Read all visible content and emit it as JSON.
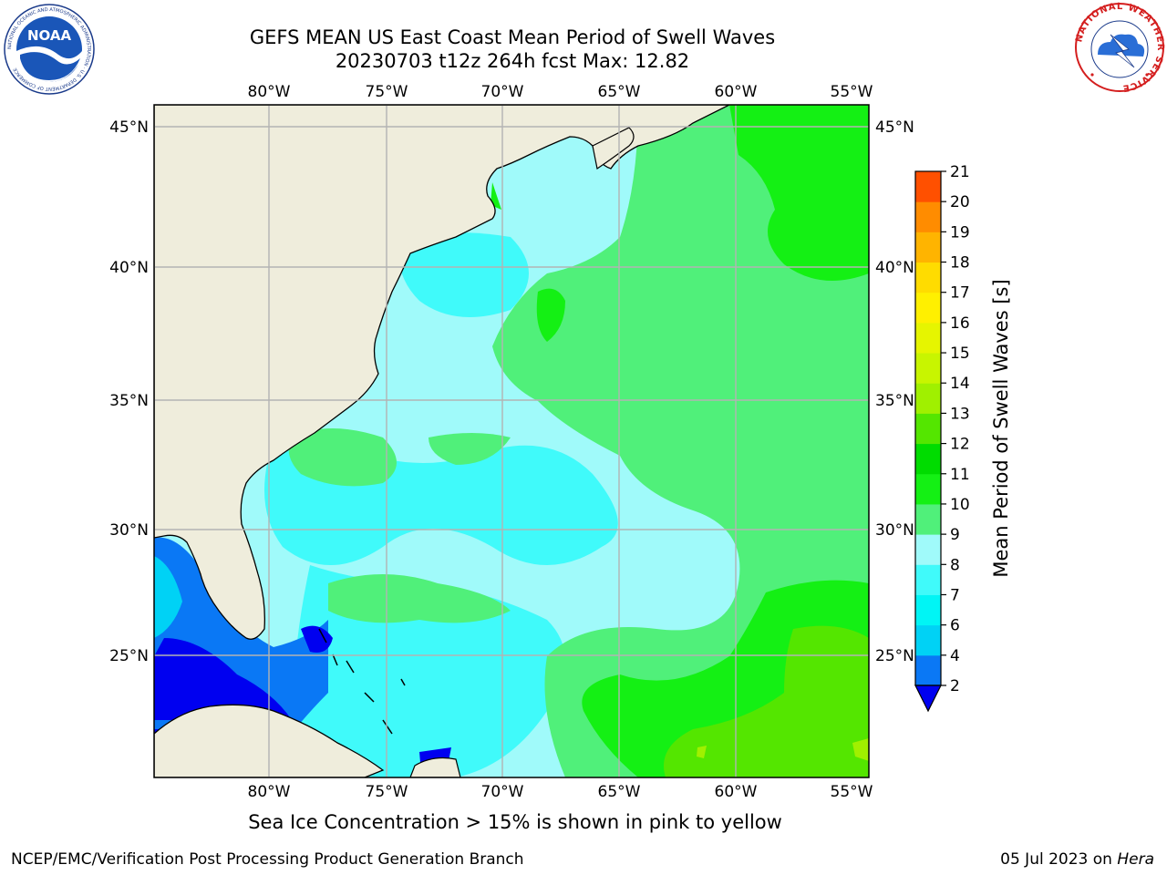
{
  "header": {
    "title_line1": "GEFS MEAN US East Coast Mean Period of Swell Waves",
    "title_line2": "20230703 t12z 264h fcst   Max: 12.82"
  },
  "map": {
    "lon_labels": [
      "80°W",
      "75°W",
      "70°W",
      "65°W",
      "60°W",
      "55°W"
    ],
    "lat_labels": [
      "45°N",
      "40°N",
      "35°N",
      "30°N",
      "25°N"
    ],
    "colors": {
      "land": "#EFEDDC",
      "grid": "#B3B3B3",
      "coast": "#000000"
    }
  },
  "colorbar": {
    "label": "Mean Period of Swell Waves [s]",
    "ticks": [
      "2",
      "4",
      "6",
      "7",
      "8",
      "9",
      "10",
      "11",
      "12",
      "13",
      "14",
      "15",
      "16",
      "17",
      "18",
      "19",
      "20",
      "21"
    ],
    "colors": [
      "#0A78F5",
      "#00D2F5",
      "#00F5F5",
      "#40FAFA",
      "#A0FAFA",
      "#50F07A",
      "#14F014",
      "#00DC00",
      "#54E600",
      "#A0F000",
      "#C8F500",
      "#E6F500",
      "#FFF000",
      "#FFDC00",
      "#FFB400",
      "#FF8C00",
      "#FF5000",
      "#FF1E00",
      "#FF0000"
    ],
    "under_color": "#0000F0"
  },
  "footer": {
    "subtitle": "Sea Ice Concentration > 15% is shown in pink to yellow",
    "left": "NCEP/EMC/Verification Post Processing Product Generation Branch",
    "date": "05 Jul 2023 on ",
    "machine": "Hera"
  },
  "logos": {
    "noaa_text": "NOAA",
    "noaa_ring_text": "NATIONAL OCEANIC AND ATMOSPHERIC ADMINISTRATION · U.S. DEPARTMENT OF COMMERCE",
    "nws_ring_text": "NATIONAL WEATHER SERVICE"
  }
}
